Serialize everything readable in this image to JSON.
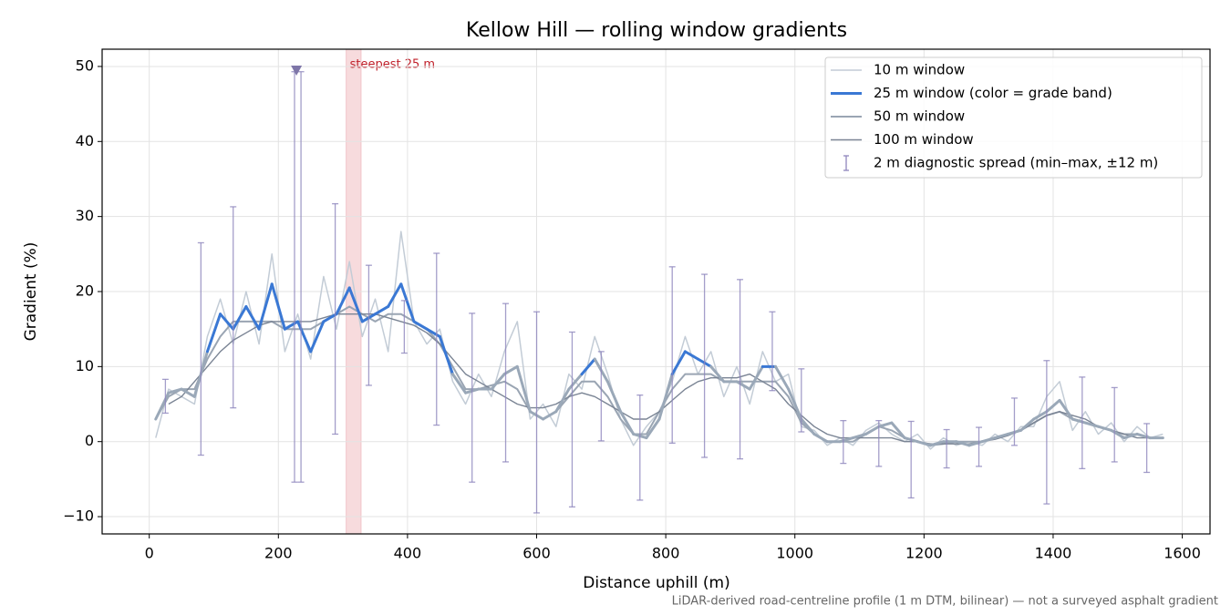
{
  "chart_data": {
    "type": "line",
    "title": "Kellow Hill — rolling window gradients",
    "x_label": "Distance uphill (m)",
    "y_label": "Gradient (%)",
    "note": "LiDAR-derived road-centreline profile (1 m DTM, bilinear) — not a surveyed asphalt gradient",
    "xlim": [
      -73,
      1643
    ],
    "ylim": [
      -12.3,
      52.3
    ],
    "xticks": [
      0,
      200,
      400,
      600,
      800,
      1000,
      1200,
      1400,
      1600
    ],
    "yticks": [
      {
        "value": -10,
        "label": "−10"
      },
      0,
      10,
      20,
      30,
      40,
      50
    ],
    "grid": true,
    "legend": "upper right",
    "x": [
      10,
      30,
      50,
      70,
      90,
      110,
      130,
      150,
      170,
      190,
      210,
      230,
      250,
      270,
      290,
      310,
      330,
      350,
      370,
      390,
      410,
      430,
      450,
      470,
      490,
      510,
      530,
      550,
      570,
      590,
      610,
      630,
      650,
      670,
      690,
      710,
      730,
      750,
      770,
      790,
      810,
      830,
      850,
      870,
      890,
      910,
      930,
      950,
      970,
      990,
      1010,
      1030,
      1050,
      1070,
      1090,
      1110,
      1130,
      1150,
      1170,
      1190,
      1210,
      1230,
      1250,
      1270,
      1290,
      1310,
      1330,
      1350,
      1370,
      1390,
      1410,
      1430,
      1450,
      1470,
      1490,
      1510,
      1530,
      1550,
      1570
    ],
    "series": [
      {
        "name": "10 m window",
        "color": "#c3ccd6",
        "width": 1.5,
        "values": [
          0.5,
          7,
          6,
          5,
          14,
          19,
          13,
          20,
          13,
          25,
          12,
          17,
          11,
          22,
          15,
          24,
          14,
          19,
          12,
          28,
          16,
          13,
          15,
          8,
          5,
          9,
          6,
          12,
          16,
          3,
          5,
          2,
          9,
          7,
          14,
          9,
          3,
          -0.5,
          2,
          4,
          8,
          14,
          9,
          12,
          6,
          10,
          5,
          12,
          8,
          9,
          2,
          1.5,
          -0.5,
          0.5,
          -0.5,
          1.5,
          2.5,
          1,
          0,
          1,
          -1,
          0.5,
          -0.5,
          0,
          -0.5,
          1,
          0,
          2,
          2,
          6,
          8,
          1.5,
          4,
          1,
          2.5,
          0,
          2,
          0.5,
          1
        ]
      },
      {
        "name": "25 m window (color = grade band)",
        "color": "#3a78d4",
        "width": 3,
        "grade_bands": [
          {
            "below": 10,
            "color": "#9aa8b8"
          },
          {
            "below": 20,
            "color": "#3a78d4"
          },
          {
            "below": null,
            "color": "#e08a00"
          }
        ],
        "values": [
          3,
          6.5,
          7,
          6,
          12,
          17,
          15,
          18,
          15,
          21,
          15,
          16,
          12,
          16,
          17,
          20.5,
          16,
          17,
          18,
          21,
          16,
          15,
          14,
          9,
          6.5,
          7,
          7,
          9,
          10,
          4,
          3,
          4,
          7,
          9,
          11,
          8,
          4,
          1,
          0.5,
          3,
          9,
          12,
          11,
          10,
          8,
          8,
          7,
          10,
          10,
          7,
          3,
          1,
          0,
          0,
          0.5,
          1,
          2,
          2.5,
          0.5,
          0,
          -0.5,
          0,
          0,
          -0.5,
          0,
          0.5,
          1,
          1.5,
          3,
          4,
          5.5,
          3,
          2.5,
          2,
          1.5,
          0.5,
          1,
          0.5,
          0.5
        ]
      },
      {
        "name": "50 m window",
        "color": "#9aa5b3",
        "width": 2,
        "values": [
          3,
          6,
          7,
          7,
          11,
          14,
          16,
          16,
          16,
          16,
          15,
          15,
          15,
          16,
          17,
          18,
          17,
          16,
          17,
          17,
          16,
          15,
          13,
          10,
          7,
          7,
          7.5,
          8,
          7,
          4,
          3,
          4,
          6,
          8,
          8,
          6,
          3,
          1,
          1,
          4,
          7,
          9,
          9,
          9,
          8,
          8,
          8,
          8,
          8,
          6,
          2.5,
          1,
          0,
          0,
          0,
          1,
          2,
          1.5,
          0.5,
          0,
          -0.5,
          -0.3,
          0,
          0,
          0,
          0.5,
          1,
          1.5,
          2.5,
          3.5,
          4,
          3,
          2.5,
          2,
          1.5,
          1,
          1,
          0.5,
          0.5
        ]
      },
      {
        "name": "100 m window",
        "color": "#7a8494",
        "width": 1.4,
        "values": [
          null,
          5,
          6,
          8,
          10,
          12,
          13.5,
          14.5,
          15.5,
          16,
          16,
          16,
          16,
          16.5,
          17,
          17,
          17,
          17,
          16.5,
          16,
          15.5,
          14.5,
          13,
          11,
          9,
          8,
          7,
          6,
          5,
          4.5,
          4.5,
          5,
          6,
          6.5,
          6,
          5,
          4,
          3,
          3,
          4,
          5.5,
          7,
          8,
          8.5,
          8.5,
          8.5,
          9,
          8,
          7,
          5,
          3.5,
          2,
          1,
          0.5,
          0.5,
          0.5,
          0.5,
          0.5,
          0,
          0,
          -0.3,
          -0.3,
          -0.3,
          -0.3,
          0,
          0.3,
          0.8,
          1.5,
          2.5,
          3.5,
          4,
          3.5,
          3,
          2,
          1.5,
          1,
          0.5,
          0.5,
          null
        ]
      }
    ],
    "errorbars": {
      "name": "2 m diagnostic spread (min–max, ±12 m)",
      "color": "#8e86bd",
      "x": [
        25,
        80,
        130,
        225,
        235,
        288,
        340,
        395,
        445,
        500,
        552,
        600,
        655,
        700,
        760,
        810,
        860,
        915,
        965,
        1010,
        1075,
        1130,
        1180,
        1235,
        1285,
        1340,
        1390,
        1445,
        1495,
        1545
      ],
      "low": [
        3.8,
        -1.8,
        4.5,
        -5.4,
        -5.4,
        1.0,
        7.5,
        11.8,
        2.2,
        -5.4,
        -2.7,
        -9.5,
        -8.7,
        0.1,
        -7.8,
        -0.2,
        -2.1,
        -2.3,
        6.8,
        1.3,
        -2.9,
        -3.3,
        -7.5,
        -3.5,
        -3.3,
        -0.5,
        -8.3,
        -3.6,
        -2.7,
        -4.1
      ],
      "high": [
        8.3,
        26.5,
        31.3,
        49.3,
        49.3,
        31.7,
        23.5,
        18.8,
        25.1,
        17.1,
        18.4,
        17.3,
        14.6,
        12.0,
        6.2,
        23.3,
        22.3,
        21.6,
        17.3,
        9.7,
        2.8,
        2.8,
        2.7,
        1.6,
        1.9,
        5.8,
        10.8,
        8.6,
        7.2,
        2.4
      ]
    },
    "clip_marker": {
      "x": 228,
      "y": 49.5,
      "color": "#7e76a8"
    },
    "highlight": {
      "x": [
        305,
        328
      ],
      "label": "steepest 25 m",
      "color": "#f2c4c8",
      "label_color": "#c0202a"
    }
  }
}
